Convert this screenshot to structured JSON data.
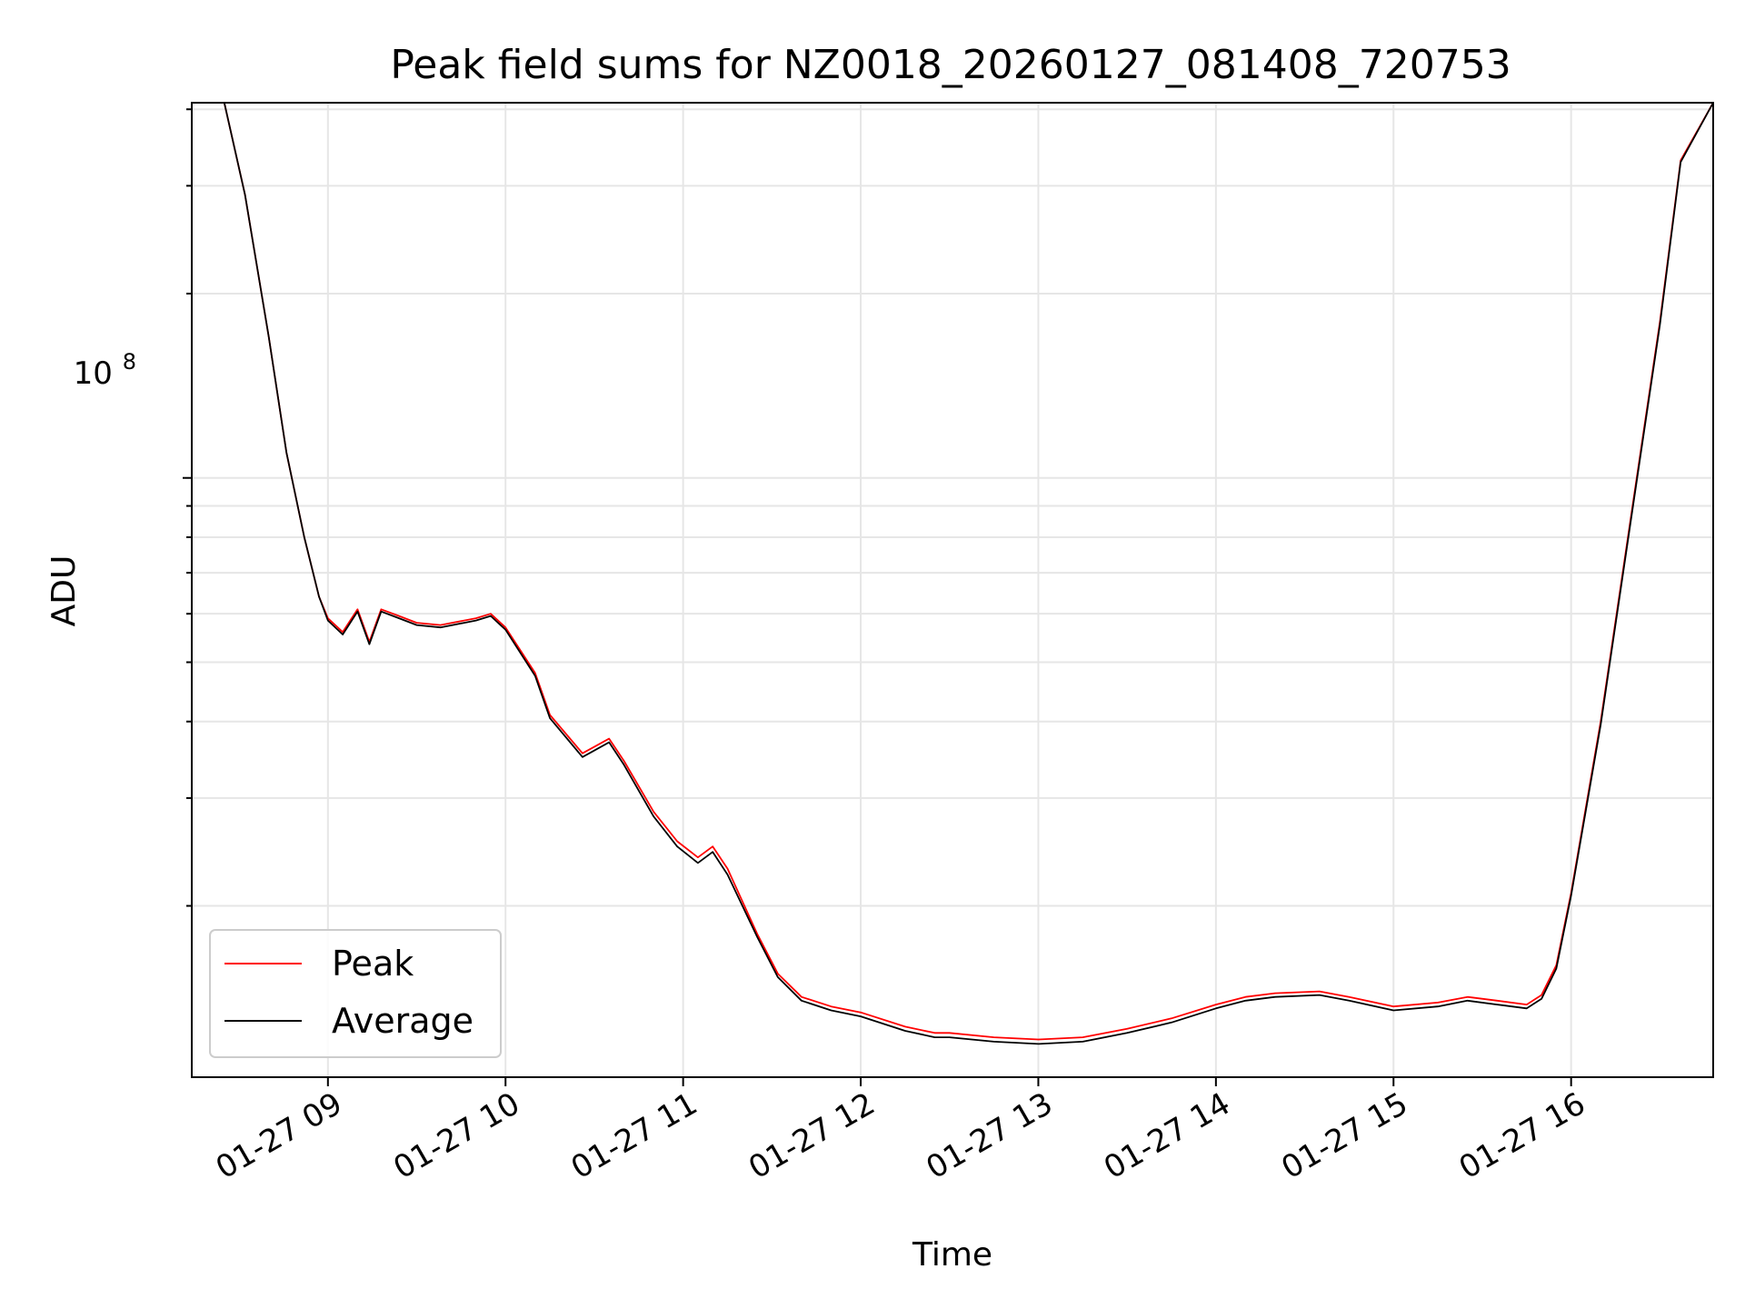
{
  "chart_data": {
    "type": "line",
    "title": "Peak field sums for NZ0018_20260127_081408_720753",
    "xlabel": "Time",
    "ylabel": "ADU",
    "y_scale": "log",
    "grid": true,
    "legend_position": "bottom-left",
    "xlim": [
      "2026-01-27 08:14",
      "2026-01-27 16:48"
    ],
    "ylim": [
      10500000,
      410000000
    ],
    "x_ticks": [
      "01-27 09",
      "01-27 10",
      "01-27 11",
      "01-27 12",
      "01-27 13",
      "01-27 14",
      "01-27 15",
      "01-27 16"
    ],
    "y_tick_label": "10",
    "y_tick_exponent": "8",
    "series": [
      {
        "name": "Peak",
        "color": "#ff0000",
        "x": [
          "2026-01-27 08:14",
          "2026-01-27 08:25",
          "2026-01-27 08:32",
          "2026-01-27 08:40",
          "2026-01-27 08:46",
          "2026-01-27 08:52",
          "2026-01-27 08:57",
          "2026-01-27 09:00",
          "2026-01-27 09:05",
          "2026-01-27 09:10",
          "2026-01-27 09:14",
          "2026-01-27 09:18",
          "2026-01-27 09:24",
          "2026-01-27 09:30",
          "2026-01-27 09:38",
          "2026-01-27 09:50",
          "2026-01-27 09:55",
          "2026-01-27 10:00",
          "2026-01-27 10:10",
          "2026-01-27 10:15",
          "2026-01-27 10:26",
          "2026-01-27 10:35",
          "2026-01-27 10:40",
          "2026-01-27 10:50",
          "2026-01-27 10:58",
          "2026-01-27 11:05",
          "2026-01-27 11:10",
          "2026-01-27 11:15",
          "2026-01-27 11:25",
          "2026-01-27 11:32",
          "2026-01-27 11:40",
          "2026-01-27 11:50",
          "2026-01-27 12:00",
          "2026-01-27 12:15",
          "2026-01-27 12:25",
          "2026-01-27 12:30",
          "2026-01-27 12:45",
          "2026-01-27 13:00",
          "2026-01-27 13:15",
          "2026-01-27 13:30",
          "2026-01-27 13:45",
          "2026-01-27 14:00",
          "2026-01-27 14:10",
          "2026-01-27 14:20",
          "2026-01-27 14:35",
          "2026-01-27 14:45",
          "2026-01-27 15:00",
          "2026-01-27 15:15",
          "2026-01-27 15:25",
          "2026-01-27 15:35",
          "2026-01-27 15:45",
          "2026-01-27 15:50",
          "2026-01-27 15:55",
          "2026-01-27 16:00",
          "2026-01-27 16:10",
          "2026-01-27 16:20",
          "2026-01-27 16:30",
          "2026-01-27 16:37",
          "2026-01-27 16:48"
        ],
        "values": [
          410000000,
          410000000,
          290000000,
          170000000,
          110000000,
          80000000,
          64000000,
          59000000,
          56000000,
          61000000,
          54000000,
          61000000,
          59500000,
          58000000,
          57500000,
          59000000,
          60000000,
          57000000,
          48000000,
          41000000,
          35500000,
          37500000,
          34500000,
          28500000,
          25500000,
          24000000,
          25000000,
          23000000,
          18000000,
          15500000,
          14200000,
          13700000,
          13400000,
          12700000,
          12400000,
          12400000,
          12200000,
          12100000,
          12200000,
          12600000,
          13100000,
          13800000,
          14200000,
          14400000,
          14500000,
          14200000,
          13700000,
          13900000,
          14200000,
          14000000,
          13800000,
          14300000,
          16000000,
          21000000,
          40000000,
          85000000,
          180000000,
          330000000,
          410000000
        ]
      },
      {
        "name": "Average",
        "color": "#000000",
        "x": [
          "2026-01-27 08:14",
          "2026-01-27 08:25",
          "2026-01-27 08:32",
          "2026-01-27 08:40",
          "2026-01-27 08:46",
          "2026-01-27 08:52",
          "2026-01-27 08:57",
          "2026-01-27 09:00",
          "2026-01-27 09:05",
          "2026-01-27 09:10",
          "2026-01-27 09:14",
          "2026-01-27 09:18",
          "2026-01-27 09:24",
          "2026-01-27 09:30",
          "2026-01-27 09:38",
          "2026-01-27 09:50",
          "2026-01-27 09:55",
          "2026-01-27 10:00",
          "2026-01-27 10:10",
          "2026-01-27 10:15",
          "2026-01-27 10:26",
          "2026-01-27 10:35",
          "2026-01-27 10:40",
          "2026-01-27 10:50",
          "2026-01-27 10:58",
          "2026-01-27 11:05",
          "2026-01-27 11:10",
          "2026-01-27 11:15",
          "2026-01-27 11:25",
          "2026-01-27 11:32",
          "2026-01-27 11:40",
          "2026-01-27 11:50",
          "2026-01-27 12:00",
          "2026-01-27 12:15",
          "2026-01-27 12:25",
          "2026-01-27 12:30",
          "2026-01-27 12:45",
          "2026-01-27 13:00",
          "2026-01-27 13:15",
          "2026-01-27 13:30",
          "2026-01-27 13:45",
          "2026-01-27 14:00",
          "2026-01-27 14:10",
          "2026-01-27 14:20",
          "2026-01-27 14:35",
          "2026-01-27 14:45",
          "2026-01-27 15:00",
          "2026-01-27 15:15",
          "2026-01-27 15:25",
          "2026-01-27 15:35",
          "2026-01-27 15:45",
          "2026-01-27 15:50",
          "2026-01-27 15:55",
          "2026-01-27 16:00",
          "2026-01-27 16:10",
          "2026-01-27 16:20",
          "2026-01-27 16:30",
          "2026-01-27 16:37",
          "2026-01-27 16:48"
        ],
        "values": [
          410000000,
          410000000,
          290000000,
          170000000,
          110000000,
          80000000,
          64000000,
          58500000,
          55500000,
          60500000,
          53500000,
          60500000,
          59000000,
          57500000,
          57000000,
          58500000,
          59500000,
          56500000,
          47500000,
          40500000,
          35000000,
          37000000,
          34000000,
          28000000,
          25000000,
          23500000,
          24500000,
          22500000,
          17800000,
          15300000,
          14000000,
          13500000,
          13200000,
          12500000,
          12200000,
          12200000,
          12000000,
          11900000,
          12000000,
          12400000,
          12900000,
          13600000,
          14000000,
          14200000,
          14300000,
          14000000,
          13500000,
          13700000,
          14000000,
          13800000,
          13600000,
          14100000,
          15800000,
          20800000,
          39500000,
          84000000,
          178000000,
          328000000,
          410000000
        ]
      }
    ]
  }
}
